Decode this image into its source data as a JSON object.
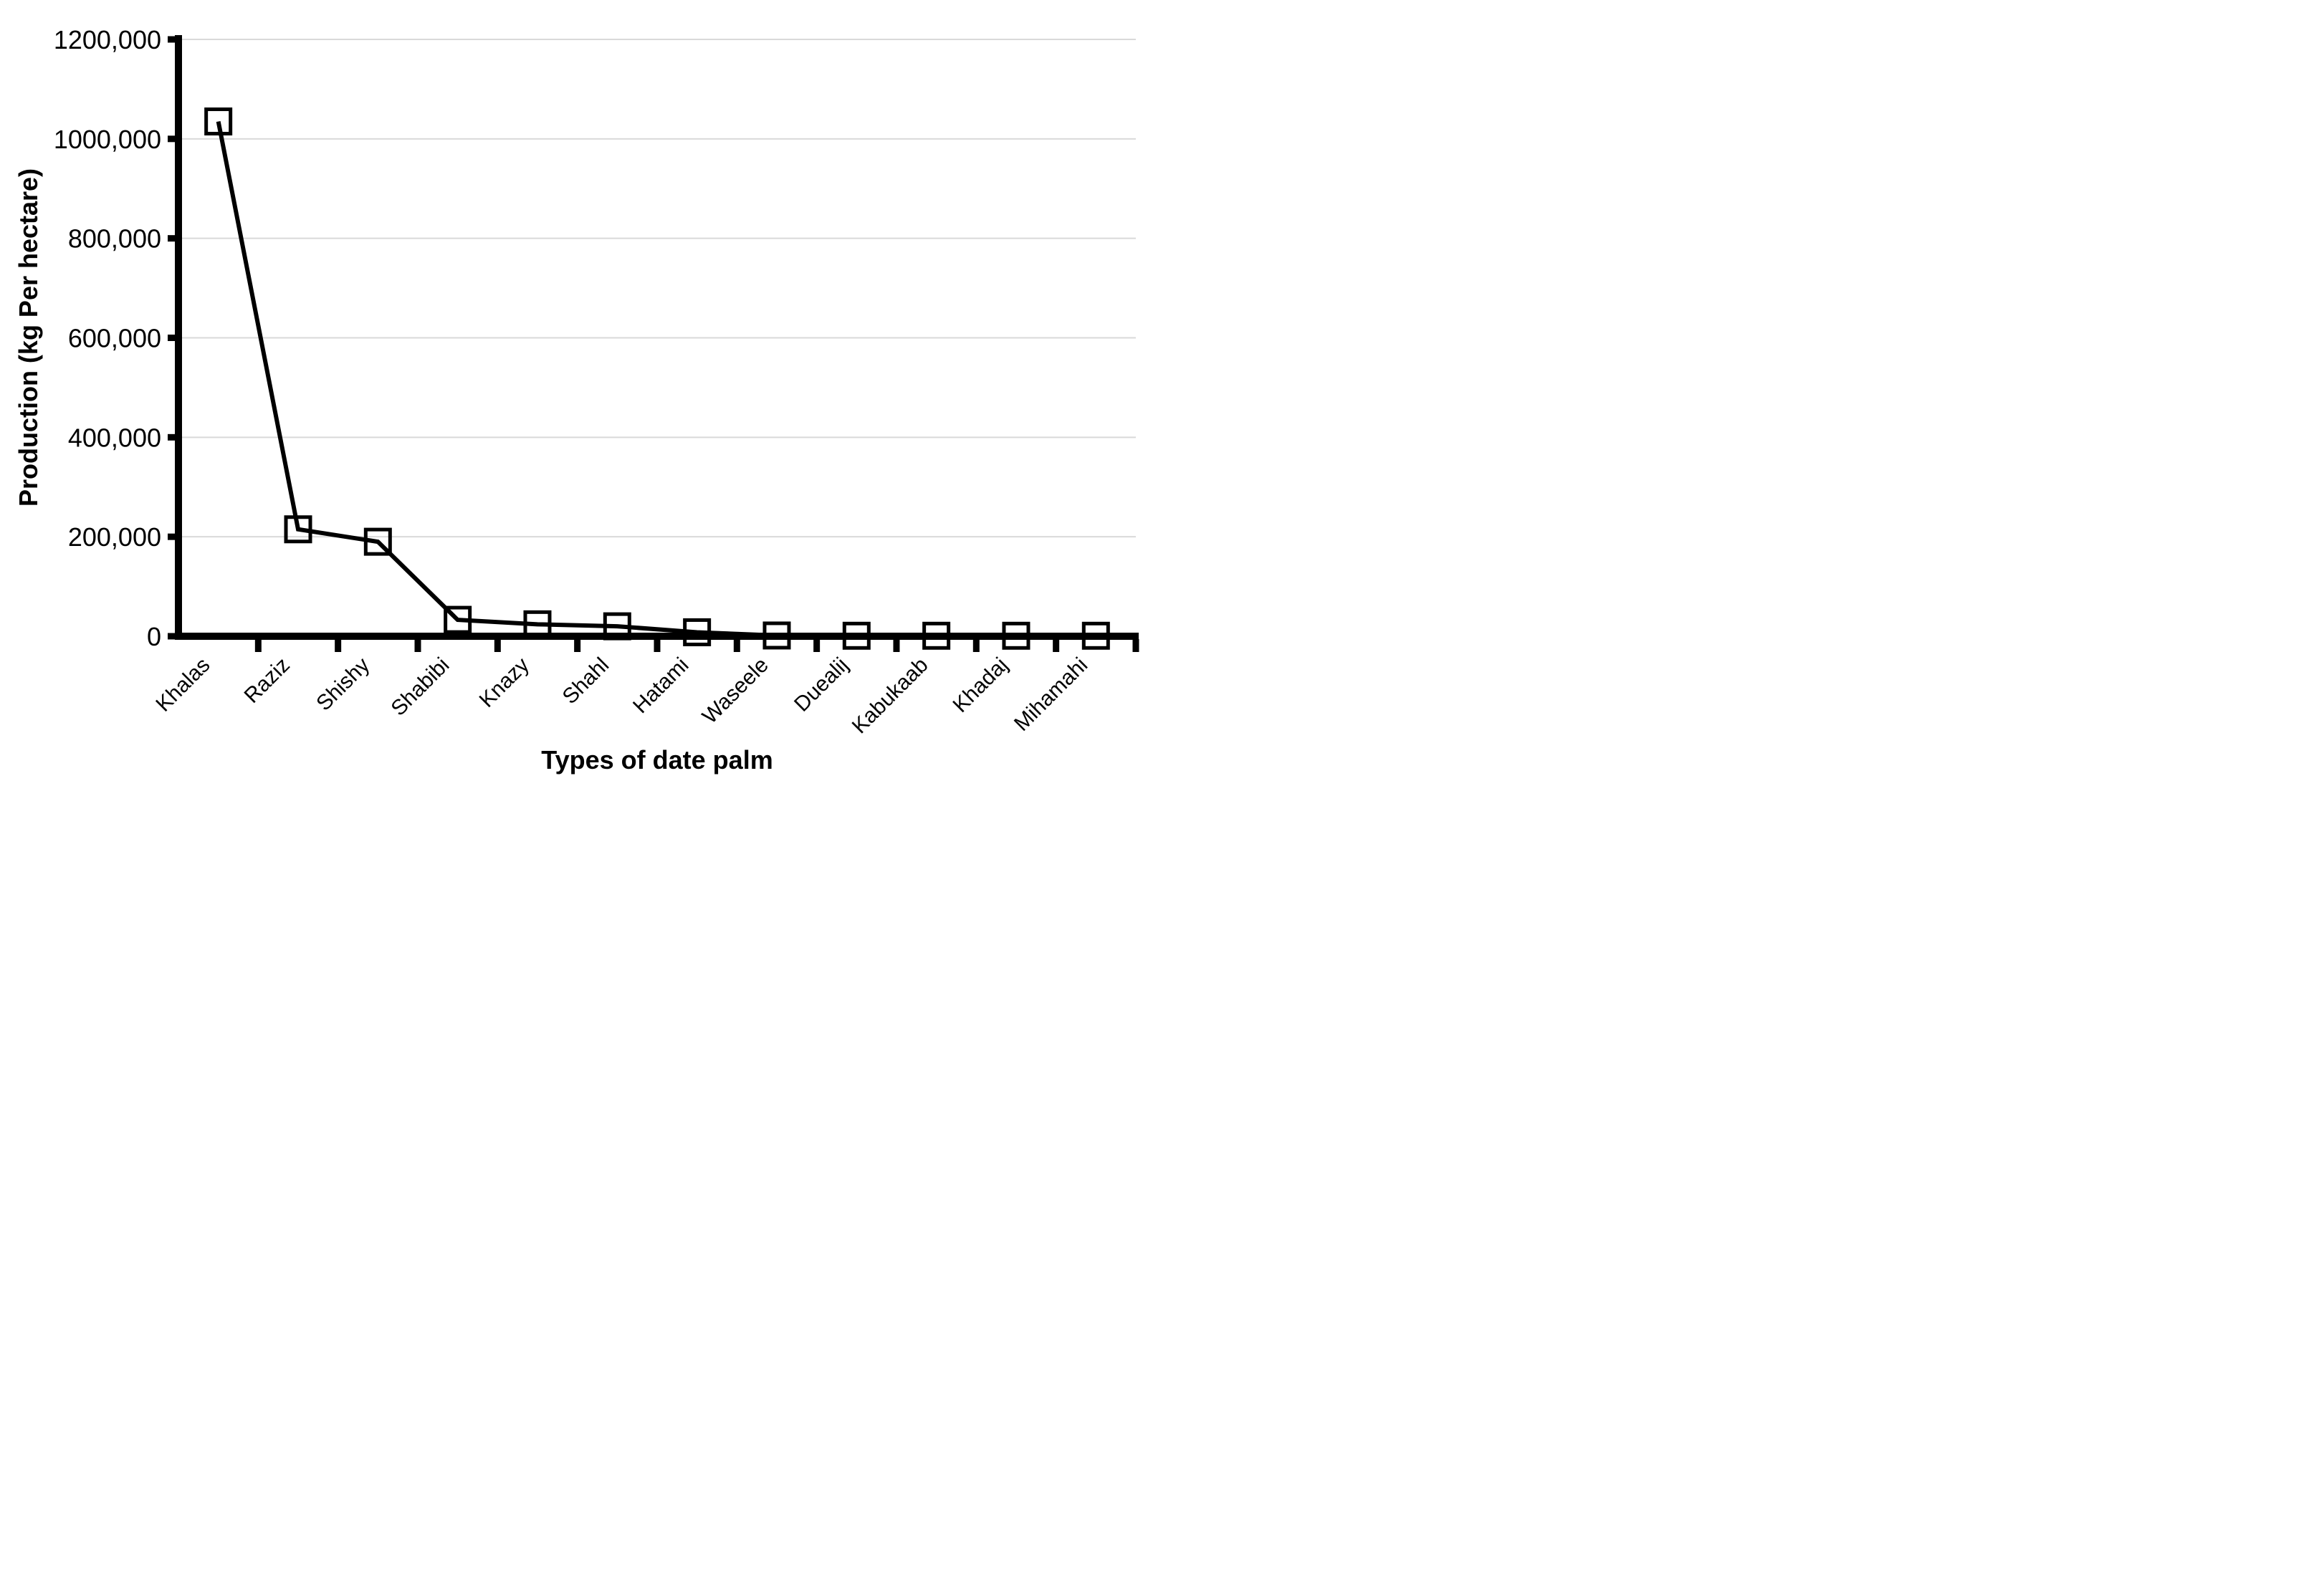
{
  "chart_data": {
    "type": "line",
    "title": "",
    "xlabel": "Types of date palm",
    "ylabel": "Production (kg Per hectare)",
    "categories": [
      "Khalas",
      "Raziz",
      "Shishy",
      "Shabibi",
      "Knazy",
      "Shahl",
      "Hatami",
      "Waseele",
      "Duealij",
      "Kabukaab",
      "Khadaj",
      "Mihamahi"
    ],
    "values": [
      1035000,
      215000,
      190000,
      33000,
      24000,
      20000,
      8000,
      1500,
      1000,
      1000,
      1000,
      1000
    ],
    "ylim": [
      0,
      1200000
    ],
    "ytick_interval": 200000,
    "ytick_labels": [
      "0",
      "200,000",
      "400,000",
      "600,000",
      "800,000",
      "1000,000",
      "1200,000"
    ],
    "grid": "horizontal gridlines at each y tick",
    "legend": "none",
    "marker": "open-square",
    "colors": {
      "series_line": "#000000",
      "marker_stroke": "#000000",
      "axis": "#000000",
      "gridline": "#d9d9d9",
      "text": "#000000",
      "background": "#ffffff"
    }
  }
}
